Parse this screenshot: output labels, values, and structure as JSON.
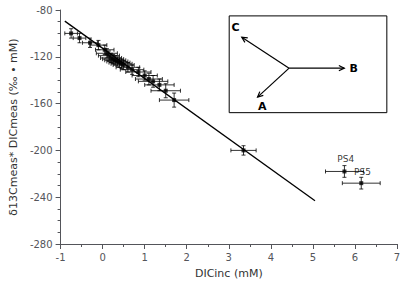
{
  "chart_data": {
    "type": "scatter",
    "xlabel": "DICinc (mM)",
    "ylabel": "δ13Cmeas* DICmeas (‰ • mM)",
    "xlim": [
      -1,
      7
    ],
    "ylim": [
      -280,
      -80
    ],
    "xticks": [
      -1,
      0,
      1,
      2,
      3,
      4,
      5,
      6,
      7
    ],
    "yticks": [
      -280,
      -240,
      -200,
      -160,
      -120,
      -80
    ],
    "grid": false,
    "marker": "square",
    "color": "#000000",
    "x": [
      -0.75,
      -0.55,
      -0.3,
      -0.1,
      0.05,
      0.1,
      0.15,
      0.2,
      0.25,
      0.3,
      0.35,
      0.4,
      0.45,
      0.5,
      0.6,
      0.7,
      0.85,
      1.0,
      1.1,
      1.2,
      1.35,
      1.5,
      1.7,
      3.35,
      5.75,
      6.15
    ],
    "values": [
      -100,
      -104,
      -108,
      -110,
      -114,
      -117,
      -119,
      -121,
      -122,
      -123,
      -124,
      -125,
      -126,
      -127,
      -129,
      -131,
      -133,
      -136,
      -139,
      -141,
      -144,
      -149,
      -157,
      -200,
      -218,
      -228
    ],
    "xerr": [
      0.15,
      0.15,
      0.18,
      0.2,
      0.22,
      0.25,
      0.25,
      0.25,
      0.25,
      0.25,
      0.25,
      0.25,
      0.25,
      0.25,
      0.28,
      0.28,
      0.3,
      0.3,
      0.32,
      0.35,
      0.35,
      0.35,
      0.35,
      0.3,
      0.45,
      0.45
    ],
    "yerr": [
      4,
      4,
      4,
      4,
      4,
      4,
      4,
      4,
      4,
      4,
      4,
      4,
      4,
      4,
      4,
      4,
      4,
      4,
      5,
      5,
      5,
      6,
      6,
      4,
      5,
      5
    ],
    "fit_line": {
      "type": "line",
      "x": [
        -0.9,
        5.05
      ],
      "values": [
        -89.5,
        -243
      ],
      "color": "#000000"
    },
    "annotations": [
      {
        "text": "PS4",
        "x": 5.58,
        "y": -211
      },
      {
        "text": "PS5",
        "x": 5.98,
        "y": -222
      }
    ],
    "inset_labels": [
      "B",
      "C",
      "A"
    ]
  }
}
